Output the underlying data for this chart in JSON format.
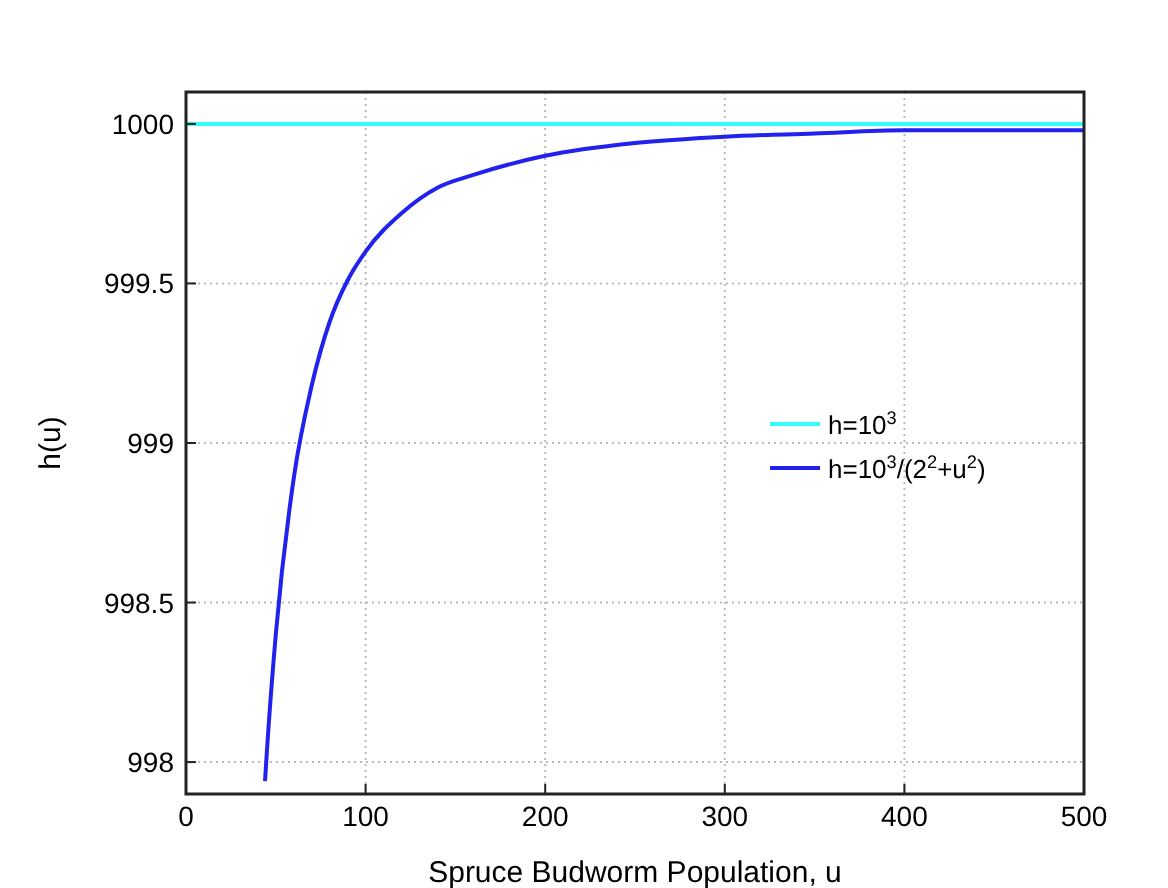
{
  "chart_data": {
    "type": "line",
    "xlabel": "Spruce Budworm Population, u",
    "ylabel": "h(u)",
    "xlim": [
      0,
      500
    ],
    "xticks": [
      0,
      100,
      200,
      300,
      400,
      500
    ],
    "ylim": [
      997.9,
      1000.1
    ],
    "yticks": [
      998,
      998.5,
      999,
      999.5,
      1000
    ],
    "grid": true,
    "legend": "right",
    "line_style": "solid",
    "marker": "none",
    "series": [
      {
        "name": "h=10$^{3}$",
        "color": "#33ffff",
        "x": [
          0,
          500
        ],
        "values": [
          1000,
          1000
        ]
      },
      {
        "name": "h=10$^{3}$/(2$^{2}$+u$^{2}$)",
        "color": "#2222ee",
        "x": [
          44,
          45,
          50,
          60,
          70,
          80,
          90,
          100,
          120,
          140,
          160,
          200,
          250,
          300,
          350,
          400,
          450,
          500
        ],
        "values": [
          997.94,
          998.03,
          998.4,
          998.89,
          999.18,
          999.38,
          999.51,
          999.6,
          999.72,
          999.8,
          999.84,
          999.9,
          999.94,
          999.96,
          999.97,
          999.98,
          999.98,
          999.98
        ]
      }
    ]
  }
}
